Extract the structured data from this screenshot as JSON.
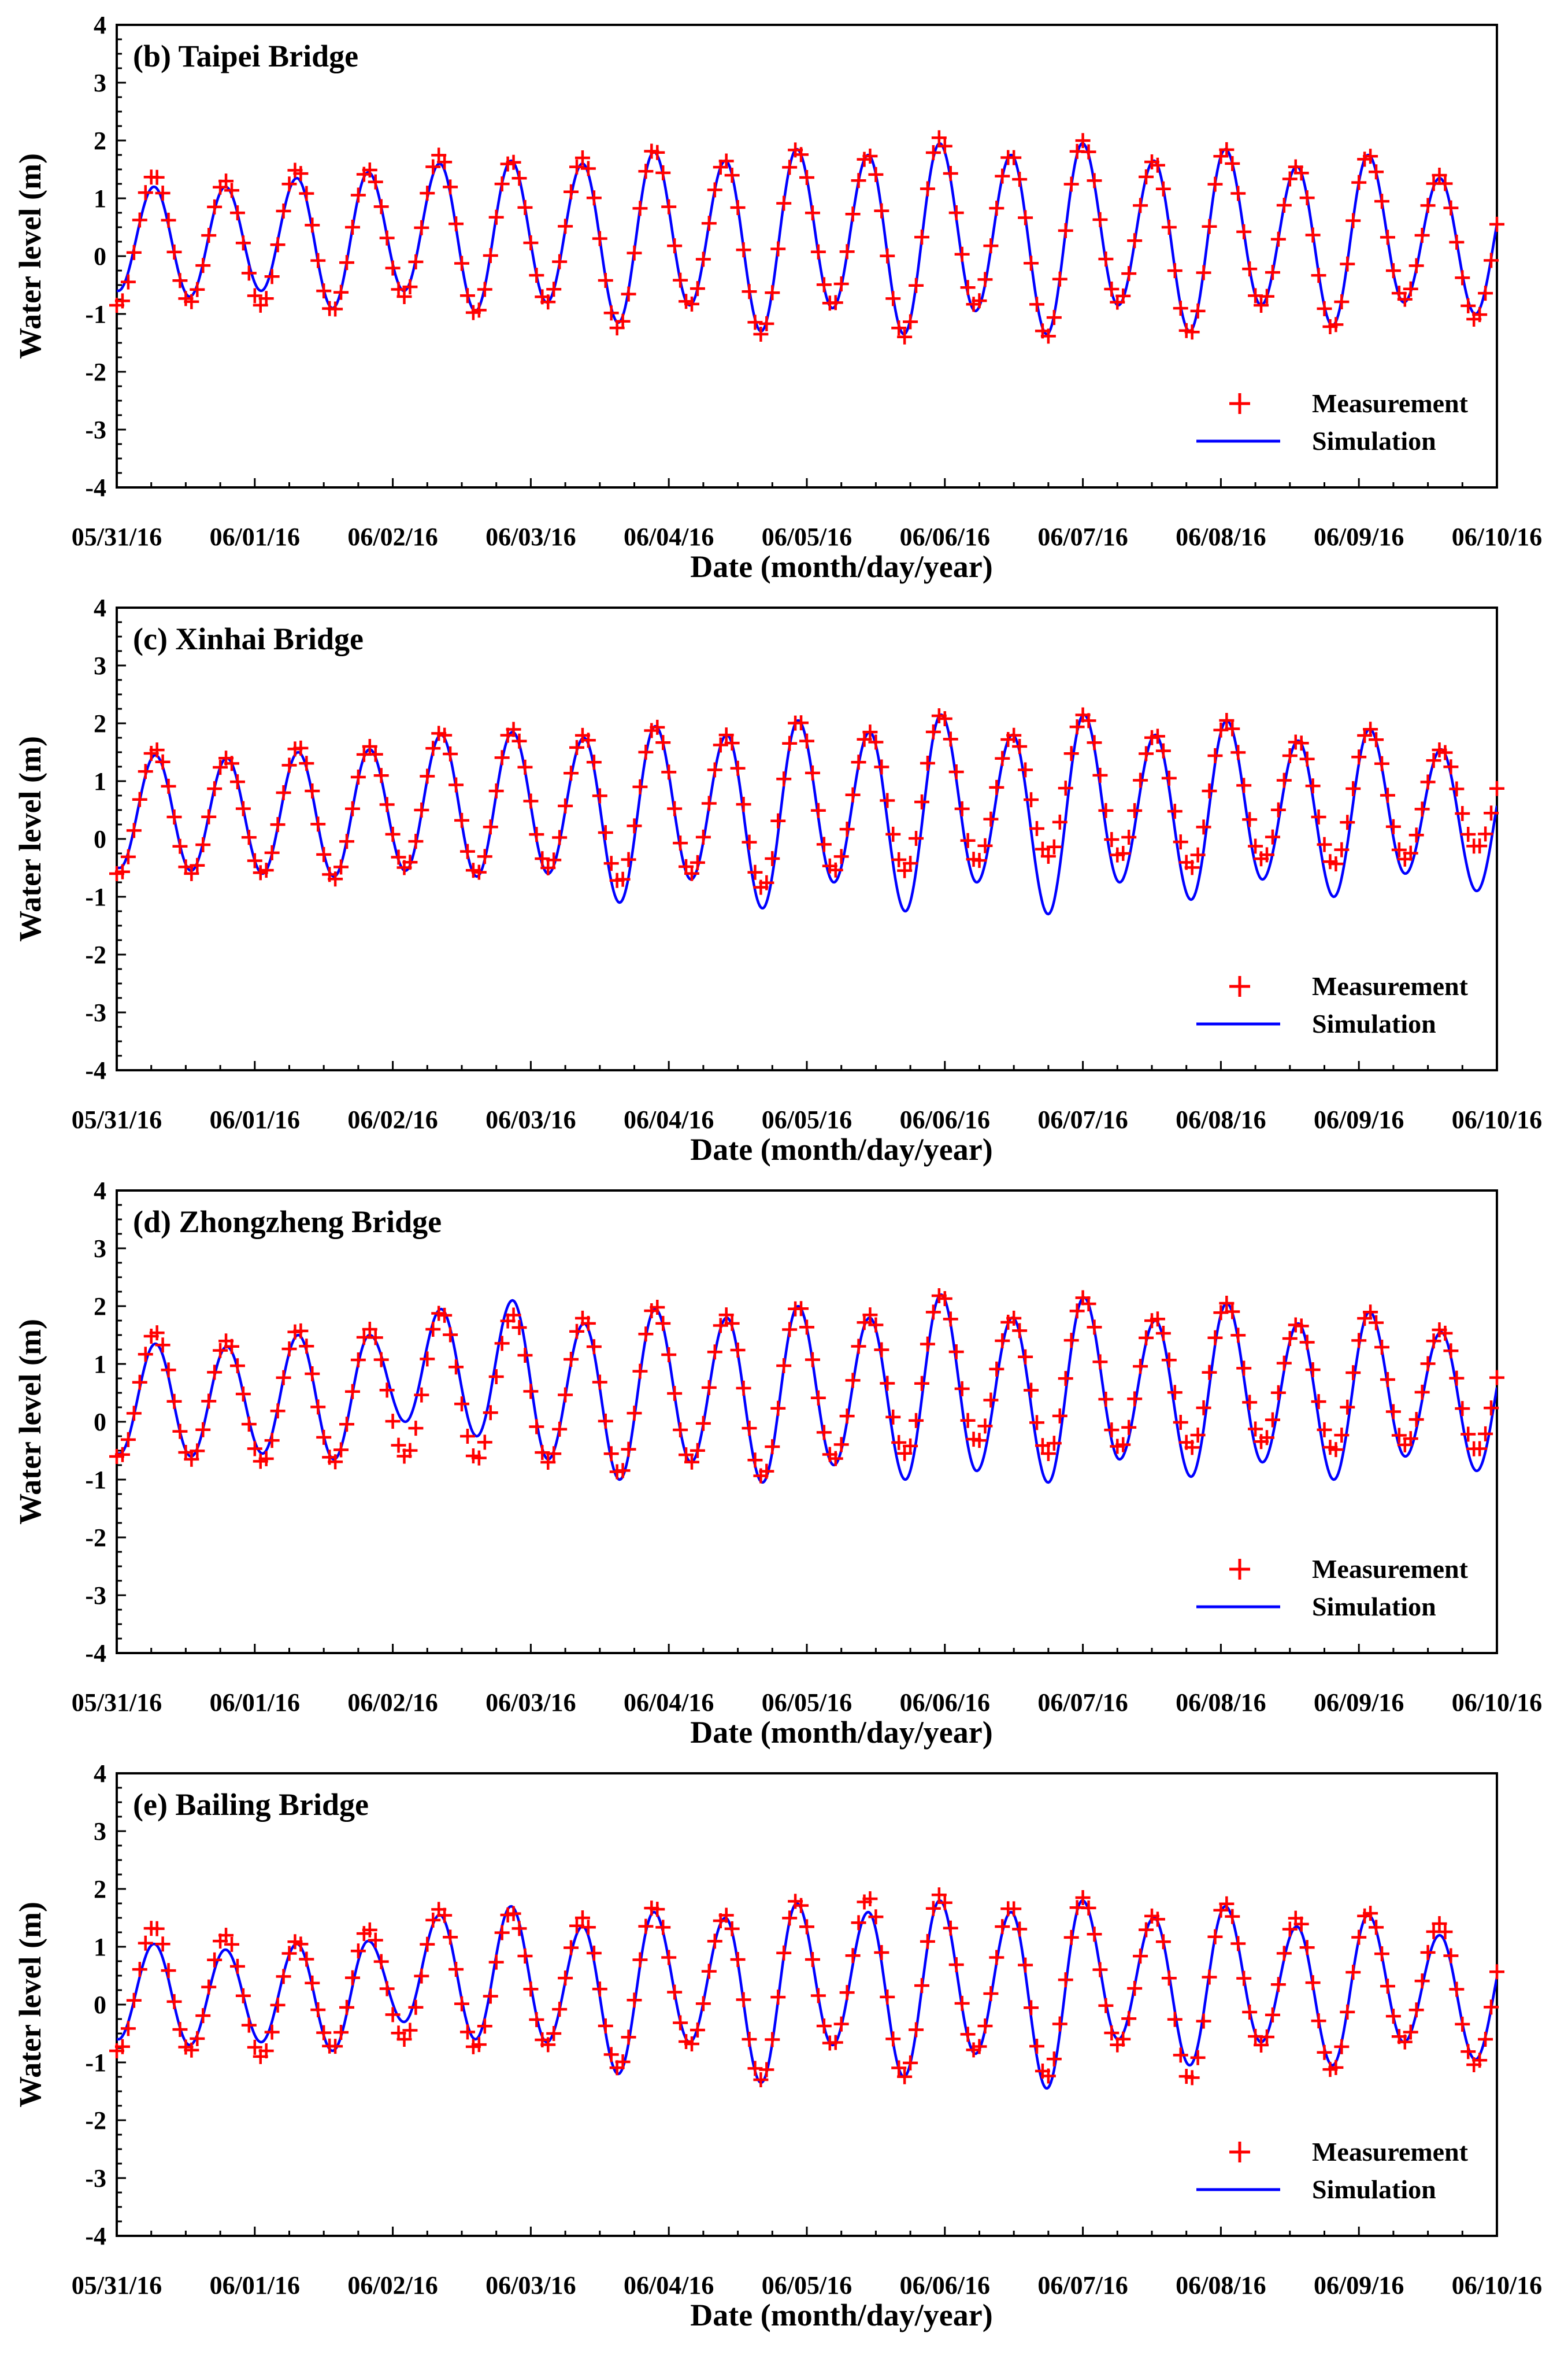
{
  "colors": {
    "measurement": "#ff0000",
    "simulation": "#0000ff",
    "axes": "#000000"
  },
  "legend": {
    "measurement_label": "Measurement",
    "simulation_label": "Simulation",
    "position": "bottom-right"
  },
  "chart_data": [
    {
      "type": "line",
      "title": "(b) Taipei Bridge",
      "xlabel": "Date (month/day/year)",
      "ylabel": "Water level (m)",
      "ylim": [
        -4,
        4
      ],
      "yticks": [
        "4",
        "3",
        "2",
        "1",
        "0",
        "-1",
        "-2",
        "-3",
        "-4"
      ],
      "xlim_days": [
        0,
        10
      ],
      "xticks": [
        "05/31/16",
        "06/01/16",
        "06/02/16",
        "06/03/16",
        "06/04/16",
        "06/05/16",
        "06/06/16",
        "06/07/16",
        "06/08/16",
        "06/09/16",
        "06/10/16"
      ],
      "series": [
        {
          "name": "Simulation",
          "kind": "line",
          "tide_model": {
            "period_days": 0.5175,
            "peak_first_day": 0.27,
            "offset_m": 0.0
          },
          "peaks_m": [
            1.2,
            1.2,
            1.35,
            1.45,
            1.6,
            1.65,
            1.6,
            1.8,
            1.65,
            1.85,
            1.75,
            1.95,
            1.75,
            1.95,
            1.65,
            1.85,
            1.55,
            1.75,
            1.35
          ],
          "troughs_m": [
            -0.6,
            -0.7,
            -0.6,
            -0.9,
            -0.6,
            -0.95,
            -0.8,
            -1.15,
            -0.85,
            -1.3,
            -0.9,
            -1.35,
            -0.95,
            -1.35,
            -0.85,
            -1.3,
            -0.85,
            -1.2,
            -0.8,
            -1.0
          ]
        },
        {
          "name": "Measurement",
          "kind": "scatter",
          "sample_interval_hours": 1,
          "tide_model": {
            "period_days": 0.5175,
            "peak_first_day": 0.27,
            "offset_m": 0.0
          },
          "peaks_m": [
            1.4,
            1.3,
            1.5,
            1.5,
            1.75,
            1.65,
            1.7,
            1.85,
            1.65,
            1.85,
            1.75,
            2.05,
            1.75,
            2.0,
            1.65,
            1.85,
            1.55,
            1.75,
            1.4
          ],
          "troughs_m": [
            -0.85,
            -0.8,
            -0.85,
            -0.95,
            -0.7,
            -1.0,
            -0.8,
            -1.25,
            -0.85,
            -1.35,
            -0.85,
            -1.4,
            -0.85,
            -1.4,
            -0.8,
            -1.35,
            -0.85,
            -1.25,
            -0.75,
            -1.1
          ]
        }
      ]
    },
    {
      "type": "line",
      "title": "(c) Xinhai Bridge",
      "xlabel": "Date (month/day/year)",
      "ylabel": "Water level (m)",
      "ylim": [
        -4,
        4
      ],
      "yticks": [
        "4",
        "3",
        "2",
        "1",
        "0",
        "-1",
        "-2",
        "-3",
        "-4"
      ],
      "xlim_days": [
        0,
        10
      ],
      "xticks": [
        "05/31/16",
        "06/01/16",
        "06/02/16",
        "06/03/16",
        "06/04/16",
        "06/05/16",
        "06/06/16",
        "06/07/16",
        "06/08/16",
        "06/09/16",
        "06/10/16"
      ],
      "series": [
        {
          "name": "Simulation",
          "kind": "line",
          "tide_model": {
            "period_days": 0.5175,
            "peak_first_day": 0.28,
            "offset_m": 0.0
          },
          "peaks_m": [
            1.45,
            1.4,
            1.5,
            1.55,
            1.8,
            1.85,
            1.75,
            1.95,
            1.8,
            2.05,
            1.85,
            2.15,
            1.8,
            2.15,
            1.8,
            2.05,
            1.7,
            1.9,
            1.55
          ],
          "troughs_m": [
            -0.5,
            -0.55,
            -0.6,
            -0.65,
            -0.55,
            -0.65,
            -0.6,
            -1.1,
            -0.7,
            -1.2,
            -0.75,
            -1.25,
            -0.75,
            -1.3,
            -0.75,
            -1.05,
            -0.7,
            -1.0,
            -0.6,
            -0.9
          ]
        },
        {
          "name": "Measurement",
          "kind": "scatter",
          "sample_interval_hours": 1,
          "tide_model": {
            "period_days": 0.5175,
            "peak_first_day": 0.28,
            "offset_m": 0.0
          },
          "peaks_m": [
            1.55,
            1.4,
            1.6,
            1.6,
            1.85,
            1.9,
            1.8,
            1.95,
            1.8,
            2.05,
            1.85,
            2.15,
            1.8,
            2.15,
            1.8,
            2.05,
            1.7,
            1.9,
            1.55
          ],
          "troughs_m": [
            -0.6,
            -0.6,
            -0.6,
            -0.7,
            -0.5,
            -0.6,
            -0.5,
            -0.75,
            -0.6,
            -0.85,
            -0.55,
            -0.55,
            -0.4,
            -0.3,
            -0.3,
            -0.5,
            -0.35,
            -0.45,
            -0.35,
            -0.15
          ]
        }
      ]
    },
    {
      "type": "line",
      "title": "(d) Zhongzheng Bridge",
      "xlabel": "Date (month/day/year)",
      "ylabel": "Water level (m)",
      "ylim": [
        -4,
        4
      ],
      "yticks": [
        "4",
        "3",
        "2",
        "1",
        "0",
        "-1",
        "-2",
        "-3",
        "-4"
      ],
      "xlim_days": [
        0,
        10
      ],
      "xticks": [
        "05/31/16",
        "06/01/16",
        "06/02/16",
        "06/03/16",
        "06/04/16",
        "06/05/16",
        "06/06/16",
        "06/07/16",
        "06/08/16",
        "06/09/16",
        "06/10/16"
      ],
      "series": [
        {
          "name": "Simulation",
          "kind": "line",
          "tide_model": {
            "period_days": 0.5175,
            "peak_first_day": 0.28,
            "offset_m": 0.0
          },
          "peaks_m": [
            1.35,
            1.3,
            1.5,
            1.5,
            1.95,
            2.1,
            1.7,
            1.95,
            1.8,
            2.0,
            1.8,
            2.2,
            1.8,
            2.15,
            1.75,
            2.05,
            1.7,
            1.9,
            1.55
          ],
          "troughs_m": [
            -0.55,
            -0.6,
            -0.55,
            -0.65,
            0.0,
            -0.25,
            -0.65,
            -1.0,
            -0.7,
            -1.05,
            -0.75,
            -1.0,
            -0.85,
            -1.05,
            -0.65,
            -0.95,
            -0.7,
            -1.0,
            -0.6,
            -0.85
          ]
        },
        {
          "name": "Measurement",
          "kind": "scatter",
          "sample_interval_hours": 1,
          "tide_model": {
            "period_days": 0.5175,
            "peak_first_day": 0.28,
            "offset_m": 0.0
          },
          "peaks_m": [
            1.55,
            1.4,
            1.6,
            1.6,
            1.9,
            1.85,
            1.8,
            2.0,
            1.85,
            2.0,
            1.85,
            2.2,
            1.8,
            2.15,
            1.8,
            2.05,
            1.7,
            1.9,
            1.6
          ],
          "troughs_m": [
            -0.6,
            -0.65,
            -0.7,
            -0.7,
            -0.6,
            -0.65,
            -0.7,
            -0.9,
            -0.7,
            -0.95,
            -0.65,
            -0.55,
            -0.35,
            -0.55,
            -0.45,
            -0.45,
            -0.35,
            -0.5,
            -0.4,
            -0.5
          ]
        }
      ]
    },
    {
      "type": "line",
      "title": "(e) Bailing Bridge",
      "xlabel": "Date (month/day/year)",
      "ylabel": "Water level (m)",
      "ylim": [
        -4,
        4
      ],
      "yticks": [
        "4",
        "3",
        "2",
        "1",
        "0",
        "-1",
        "-2",
        "-3",
        "-4"
      ],
      "xlim_days": [
        0,
        10
      ],
      "xticks": [
        "05/31/16",
        "06/01/16",
        "06/02/16",
        "06/03/16",
        "06/04/16",
        "06/05/16",
        "06/06/16",
        "06/07/16",
        "06/08/16",
        "06/09/16",
        "06/10/16"
      ],
      "series": [
        {
          "name": "Simulation",
          "kind": "line",
          "tide_model": {
            "period_days": 0.5175,
            "peak_first_day": 0.27,
            "offset_m": 0.0
          },
          "peaks_m": [
            1.05,
            0.95,
            1.05,
            1.1,
            1.55,
            1.7,
            1.35,
            1.6,
            1.5,
            1.75,
            1.6,
            1.8,
            1.6,
            1.8,
            1.5,
            1.7,
            1.35,
            1.55,
            1.2
          ],
          "troughs_m": [
            -0.6,
            -0.7,
            -0.65,
            -0.8,
            -0.3,
            -0.6,
            -0.65,
            -1.2,
            -0.65,
            -1.35,
            -0.7,
            -1.25,
            -0.85,
            -1.45,
            -0.6,
            -1.05,
            -0.65,
            -1.05,
            -0.65,
            -0.95
          ]
        },
        {
          "name": "Measurement",
          "kind": "scatter",
          "sample_interval_hours": 1,
          "tide_model": {
            "period_days": 0.5175,
            "peak_first_day": 0.27,
            "offset_m": 0.0
          },
          "peaks_m": [
            1.35,
            1.2,
            1.1,
            1.3,
            1.65,
            1.6,
            1.5,
            1.7,
            1.55,
            1.8,
            1.85,
            1.9,
            1.7,
            1.85,
            1.55,
            1.75,
            1.5,
            1.6,
            1.4
          ],
          "troughs_m": [
            -0.8,
            -0.8,
            -0.9,
            -0.75,
            -0.6,
            -0.75,
            -0.7,
            -1.1,
            -0.7,
            -1.3,
            -0.7,
            -1.25,
            -0.8,
            -1.25,
            -0.7,
            -1.3,
            -0.7,
            -1.15,
            -0.65,
            -1.05
          ]
        }
      ]
    }
  ]
}
